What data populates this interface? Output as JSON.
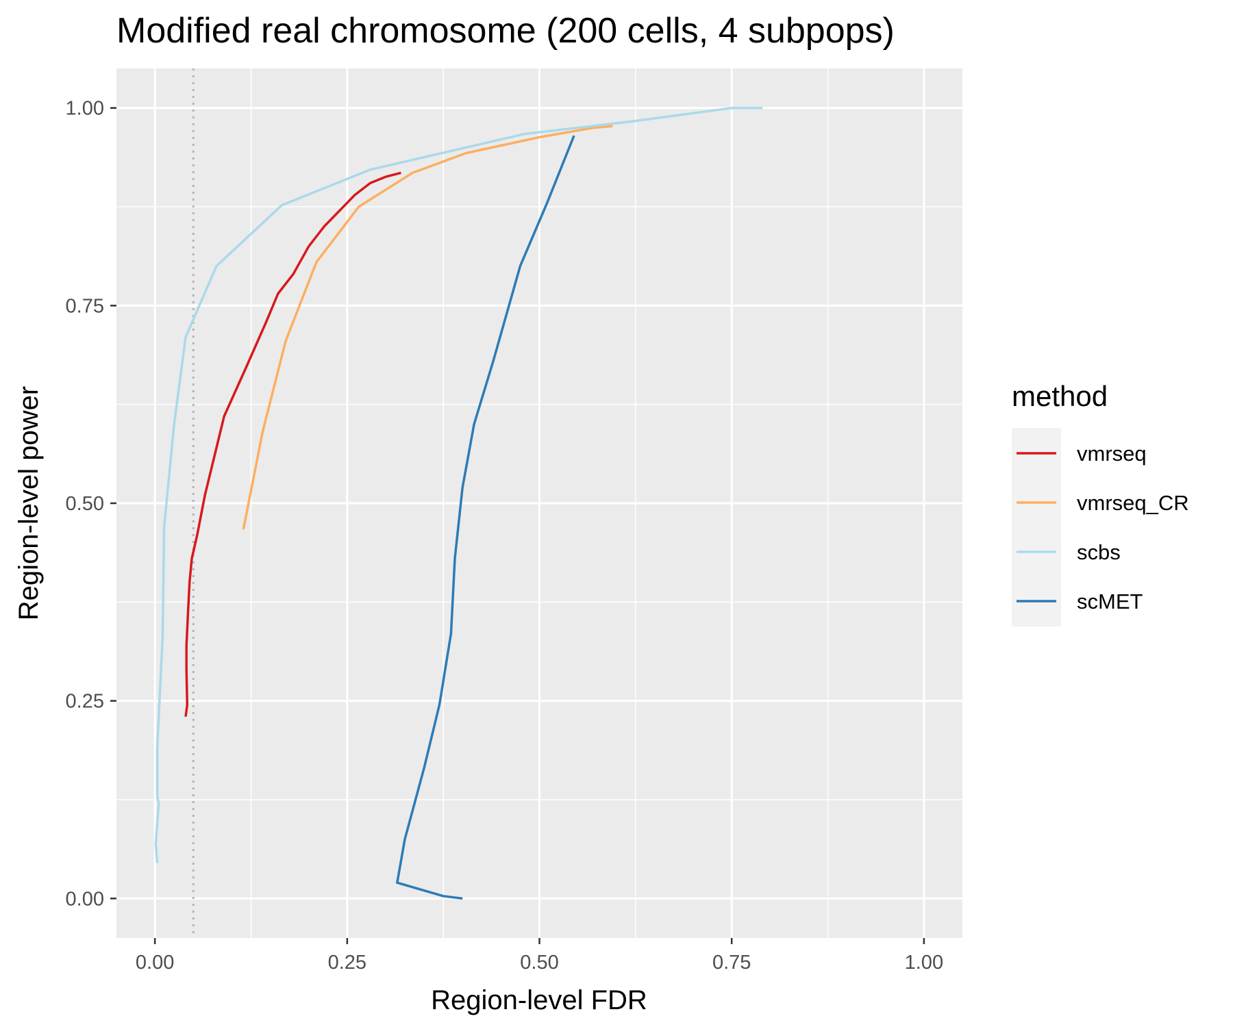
{
  "chart_data": {
    "type": "line",
    "title": "Modified real chromosome (200 cells, 4 subpops)",
    "xlabel": "Region-level FDR",
    "ylabel": "Region-level power",
    "xlim": [
      -0.05,
      1.05
    ],
    "ylim": [
      -0.05,
      1.05
    ],
    "x_ticks": [
      "0.00",
      "0.25",
      "0.50",
      "0.75",
      "1.00"
    ],
    "y_ticks": [
      "0.00",
      "0.25",
      "0.50",
      "0.75",
      "1.00"
    ],
    "grid": true,
    "reference_line": {
      "x": 0.05,
      "style": "dotted"
    },
    "legend": {
      "title": "method",
      "position": "right"
    },
    "series": [
      {
        "name": "vmrseq",
        "color": "#d7191c",
        "points": [
          [
            0.04,
            0.23
          ],
          [
            0.042,
            0.245
          ],
          [
            0.041,
            0.29
          ],
          [
            0.041,
            0.32
          ],
          [
            0.043,
            0.36
          ],
          [
            0.045,
            0.4
          ],
          [
            0.048,
            0.43
          ],
          [
            0.055,
            0.46
          ],
          [
            0.065,
            0.51
          ],
          [
            0.09,
            0.61
          ],
          [
            0.12,
            0.675
          ],
          [
            0.145,
            0.73
          ],
          [
            0.16,
            0.765
          ],
          [
            0.18,
            0.79
          ],
          [
            0.2,
            0.825
          ],
          [
            0.22,
            0.85
          ],
          [
            0.26,
            0.89
          ],
          [
            0.28,
            0.905
          ],
          [
            0.3,
            0.913
          ],
          [
            0.32,
            0.918
          ]
        ]
      },
      {
        "name": "vmrseq_CR",
        "color": "#fdae61",
        "points": [
          [
            0.115,
            0.467
          ],
          [
            0.14,
            0.59
          ],
          [
            0.17,
            0.705
          ],
          [
            0.21,
            0.805
          ],
          [
            0.265,
            0.875
          ],
          [
            0.335,
            0.918
          ],
          [
            0.405,
            0.943
          ],
          [
            0.5,
            0.963
          ],
          [
            0.57,
            0.975
          ],
          [
            0.595,
            0.977
          ]
        ]
      },
      {
        "name": "scbs",
        "color": "#abd9e9",
        "points": [
          [
            0.003,
            0.045
          ],
          [
            0.001,
            0.07
          ],
          [
            0.005,
            0.12
          ],
          [
            0.003,
            0.13
          ],
          [
            0.003,
            0.19
          ],
          [
            0.006,
            0.25
          ],
          [
            0.01,
            0.33
          ],
          [
            0.012,
            0.47
          ],
          [
            0.025,
            0.6
          ],
          [
            0.04,
            0.71
          ],
          [
            0.08,
            0.8
          ],
          [
            0.165,
            0.877
          ],
          [
            0.28,
            0.922
          ],
          [
            0.48,
            0.967
          ],
          [
            0.62,
            0.983
          ],
          [
            0.75,
            1.0
          ],
          [
            0.79,
            1.0
          ]
        ]
      },
      {
        "name": "scMET",
        "color": "#2c7bb6",
        "points": [
          [
            0.4,
            0.0
          ],
          [
            0.375,
            0.003
          ],
          [
            0.315,
            0.02
          ],
          [
            0.325,
            0.075
          ],
          [
            0.35,
            0.165
          ],
          [
            0.37,
            0.245
          ],
          [
            0.385,
            0.335
          ],
          [
            0.39,
            0.43
          ],
          [
            0.4,
            0.52
          ],
          [
            0.415,
            0.6
          ],
          [
            0.44,
            0.68
          ],
          [
            0.475,
            0.8
          ],
          [
            0.51,
            0.88
          ],
          [
            0.545,
            0.965
          ]
        ]
      }
    ]
  }
}
